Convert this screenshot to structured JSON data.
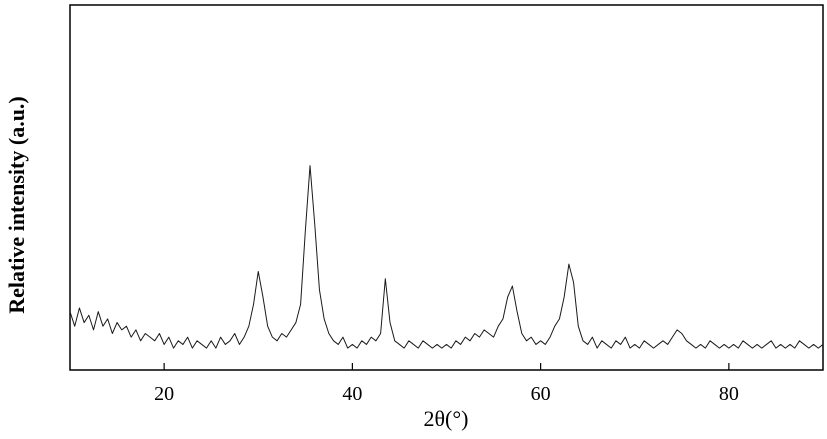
{
  "chart_data": {
    "type": "line",
    "xlabel": "2θ(°)",
    "ylabel": "Relative intensity (a.u.)",
    "xlim": [
      10,
      90
    ],
    "xticks": [
      20,
      40,
      60,
      80
    ],
    "ylim": [
      0,
      100
    ],
    "color": "#1a1a1a",
    "x": [
      10,
      10.5,
      11,
      11.5,
      12,
      12.5,
      13,
      13.5,
      14,
      14.5,
      15,
      15.5,
      16,
      16.5,
      17,
      17.5,
      18,
      18.5,
      19,
      19.5,
      20,
      20.5,
      21,
      21.5,
      22,
      22.5,
      23,
      23.5,
      24,
      24.5,
      25,
      25.5,
      26,
      26.5,
      27,
      27.5,
      28,
      28.5,
      29,
      29.5,
      30,
      30.5,
      31,
      31.5,
      32,
      32.5,
      33,
      33.5,
      34,
      34.5,
      35,
      35.5,
      36,
      36.5,
      37,
      37.5,
      38,
      38.5,
      39,
      39.5,
      40,
      40.5,
      41,
      41.5,
      42,
      42.5,
      43,
      43.5,
      44,
      44.5,
      45,
      45.5,
      46,
      46.5,
      47,
      47.5,
      48,
      48.5,
      49,
      49.5,
      50,
      50.5,
      51,
      51.5,
      52,
      52.5,
      53,
      53.5,
      54,
      54.5,
      55,
      55.5,
      56,
      56.5,
      57,
      57.5,
      58,
      58.5,
      59,
      59.5,
      60,
      60.5,
      61,
      61.5,
      62,
      62.5,
      63,
      63.5,
      64,
      64.5,
      65,
      65.5,
      66,
      66.5,
      67,
      67.5,
      68,
      68.5,
      69,
      69.5,
      70,
      70.5,
      71,
      71.5,
      72,
      72.5,
      73,
      73.5,
      74,
      74.5,
      75,
      75.5,
      76,
      76.5,
      77,
      77.5,
      78,
      78.5,
      79,
      79.5,
      80,
      80.5,
      81,
      81.5,
      82,
      82.5,
      83,
      83.5,
      84,
      84.5,
      85,
      85.5,
      86,
      86.5,
      87,
      87.5,
      88,
      88.5,
      89,
      89.5,
      90
    ],
    "values": [
      16,
      12,
      17,
      13,
      15,
      11,
      16,
      12,
      14,
      10,
      13,
      11,
      12,
      9,
      11,
      8,
      10,
      9,
      8,
      10,
      7,
      9,
      6,
      8,
      7,
      9,
      6,
      8,
      7,
      6,
      8,
      6,
      9,
      7,
      8,
      10,
      7,
      9,
      12,
      18,
      27,
      20,
      12,
      9,
      8,
      10,
      9,
      11,
      13,
      18,
      38,
      56,
      40,
      22,
      14,
      10,
      8,
      7,
      9,
      6,
      7,
      6,
      8,
      7,
      9,
      8,
      10,
      25,
      13,
      8,
      7,
      6,
      8,
      7,
      6,
      8,
      7,
      6,
      7,
      6,
      7,
      6,
      8,
      7,
      9,
      8,
      10,
      9,
      11,
      10,
      9,
      12,
      14,
      20,
      23,
      16,
      10,
      8,
      9,
      7,
      8,
      7,
      9,
      12,
      14,
      20,
      29,
      24,
      12,
      8,
      7,
      9,
      6,
      8,
      7,
      6,
      8,
      7,
      9,
      6,
      7,
      6,
      8,
      7,
      6,
      7,
      8,
      7,
      9,
      11,
      10,
      8,
      7,
      6,
      7,
      6,
      8,
      7,
      6,
      7,
      6,
      7,
      6,
      8,
      7,
      6,
      7,
      6,
      7,
      8,
      6,
      7,
      6,
      7,
      6,
      8,
      7,
      6,
      7,
      6,
      7
    ]
  }
}
